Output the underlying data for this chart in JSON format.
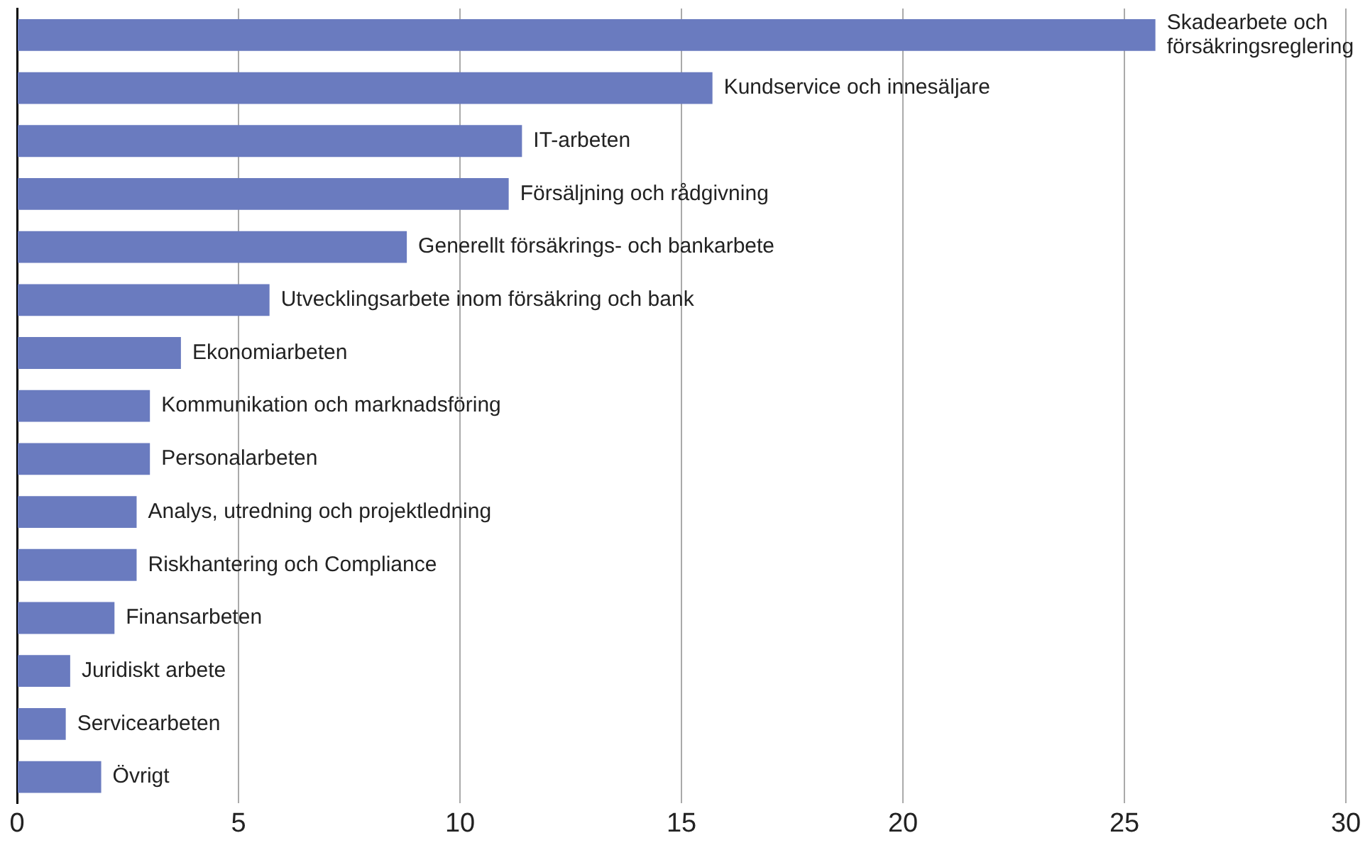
{
  "chart_data": {
    "type": "bar",
    "orientation": "horizontal",
    "categories": [
      "Skadearbete och försäkringsreglering",
      "Kundservice och innesäljare",
      "IT-arbeten",
      "Försäljning och rådgivning",
      "Generellt försäkrings- och bankarbete",
      "Utvecklingsarbete inom försäkring och bank",
      "Ekonomiarbeten",
      "Kommunikation och marknadsföring",
      "Personalarbeten",
      "Analys, utredning och projektledning",
      "Riskhantering och Compliance",
      "Finansarbeten",
      "Juridiskt arbete",
      "Servicearbeten",
      "Övrigt"
    ],
    "values": [
      25.7,
      15.7,
      11.4,
      11.1,
      8.8,
      5.7,
      3.7,
      3.0,
      3.0,
      2.7,
      2.7,
      2.2,
      1.2,
      1.1,
      1.9
    ],
    "color": "#6a7bbf",
    "xlim": [
      0,
      30
    ],
    "xticks": [
      0,
      5,
      10,
      15,
      20,
      25,
      30
    ],
    "grid": "x",
    "legend": false
  }
}
